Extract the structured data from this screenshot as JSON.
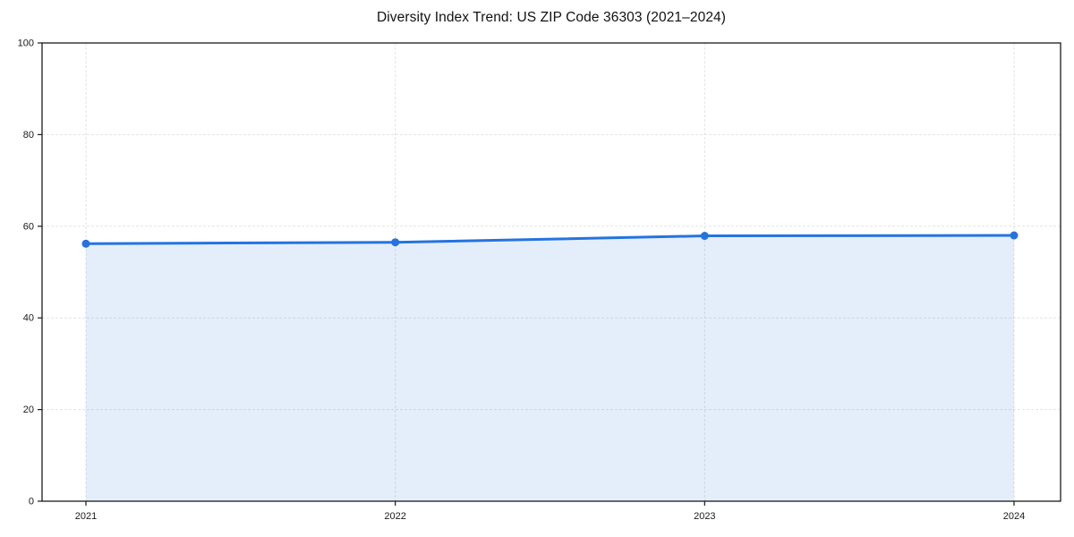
{
  "figure": {
    "title": "Diversity Index Trend: US ZIP Code 36303 (2021–2024)"
  },
  "chart_data": {
    "type": "area",
    "title": "Diversity Index Trend: US ZIP Code 36303 (2021–2024)",
    "x": [
      "2021",
      "2022",
      "2023",
      "2024"
    ],
    "series": [
      {
        "name": "Diversity Index",
        "values": [
          56.2,
          56.5,
          57.9,
          58.0
        ]
      }
    ],
    "xlabel": "",
    "ylabel": "",
    "ylim": [
      0,
      100
    ],
    "yticks": [
      0,
      20,
      40,
      60,
      80,
      100
    ],
    "grid": true,
    "grid_style": "dashed",
    "legend": "none",
    "marker": "circle",
    "colors": {
      "line": "#2573e0",
      "marker": "#2573e0",
      "fill": "rgba(37, 115, 224, 0.12)",
      "grid": "#e3e3e3",
      "spine": "#1a1a1a",
      "tick_text": "#1a1a1a",
      "background": "#ffffff"
    }
  }
}
